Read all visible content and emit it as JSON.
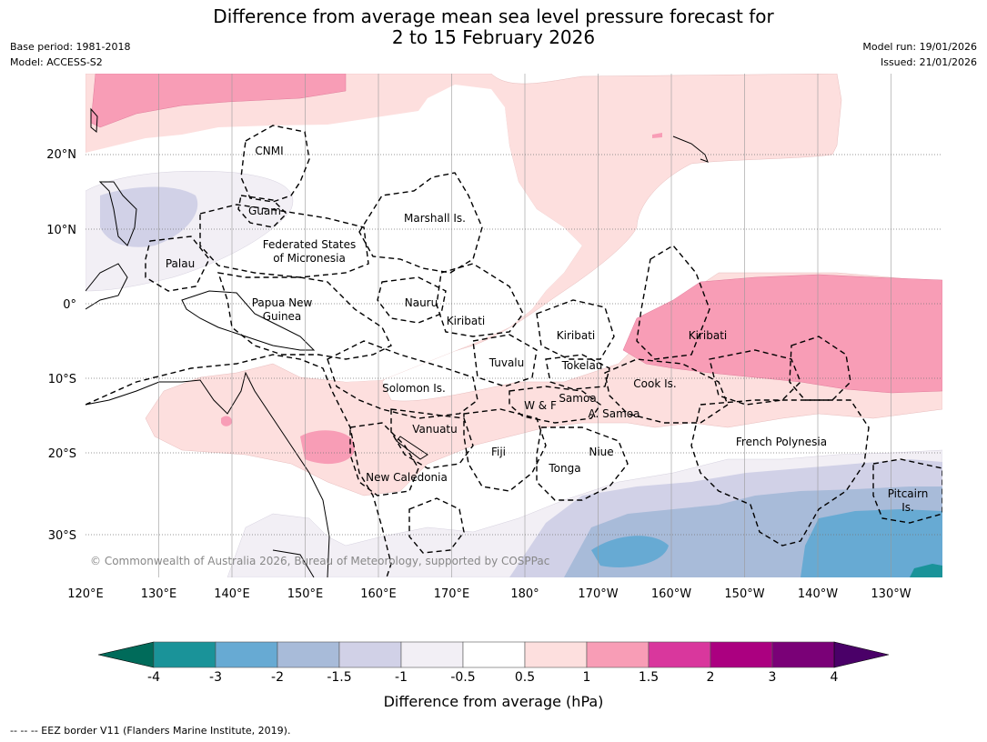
{
  "title": {
    "line1": "Difference from average mean sea level pressure forecast for",
    "line2": "2 to 15 February 2026"
  },
  "meta": {
    "base_period": "Base period: 1981-2018",
    "model": "Model: ACCESS-S2",
    "model_run": "Model run: 19/01/2026",
    "issued": "Issued: 21/01/2026"
  },
  "map": {
    "copyright": "© Commonwealth of Australia 2026, Bureau of Meteorology, supported by COSPPac",
    "lat_labels": [
      "20°N",
      "10°N",
      "0°",
      "10°S",
      "20°S",
      "30°S"
    ],
    "lon_labels": [
      "120°E",
      "130°E",
      "140°E",
      "150°E",
      "160°E",
      "170°E",
      "180°",
      "170°W",
      "160°W",
      "150°W",
      "140°W",
      "130°W"
    ],
    "region_labels": {
      "cnmi": "CNMI",
      "guam": "Guam",
      "marshall": "Marshall Is.",
      "fsm_1": "Federated States",
      "fsm_2": "of Micronesia",
      "palau": "Palau",
      "png_1": "Papua New",
      "png_2": "Guinea",
      "nauru": "Nauru",
      "kiribati_w": "Kiribati",
      "kiribati_c": "Kiribati",
      "kiribati_e": "Kiribati",
      "tuvalu": "Tuvalu",
      "tokelau": "Tokelau",
      "cook": "Cook Is.",
      "solomon": "Solomon Is.",
      "samoa": "Samoa",
      "wf": "W & F",
      "asamoa": "A. Samoa",
      "vanuatu": "Vanuatu",
      "fiji": "Fiji",
      "niue": "Niue",
      "tonga": "Tonga",
      "french_polynesia": "French Polynesia",
      "new_caledonia": "New Caledonia",
      "pitcairn_1": "Pitcairn",
      "pitcairn_2": "Is."
    }
  },
  "legend": {
    "ticks": [
      "-4",
      "-3",
      "-2",
      "-1.5",
      "-1",
      "-0.5",
      "0.5",
      "1",
      "1.5",
      "2",
      "3",
      "4"
    ],
    "colors": {
      "below_min": "#006b5a",
      "bins": [
        "#1a9399",
        "#67aad3",
        "#a8bbd9",
        "#d1d1e7",
        "#f2eff5",
        "#ffffff",
        "#fddfde",
        "#f89db6",
        "#d9379d",
        "#ab0080",
        "#7a0177"
      ],
      "above_max": "#4a0068"
    },
    "label": "Difference from average (hPa)"
  },
  "footnote": "--  --  -- EEZ border V11 (Flanders Marine Institute, 2019)."
}
